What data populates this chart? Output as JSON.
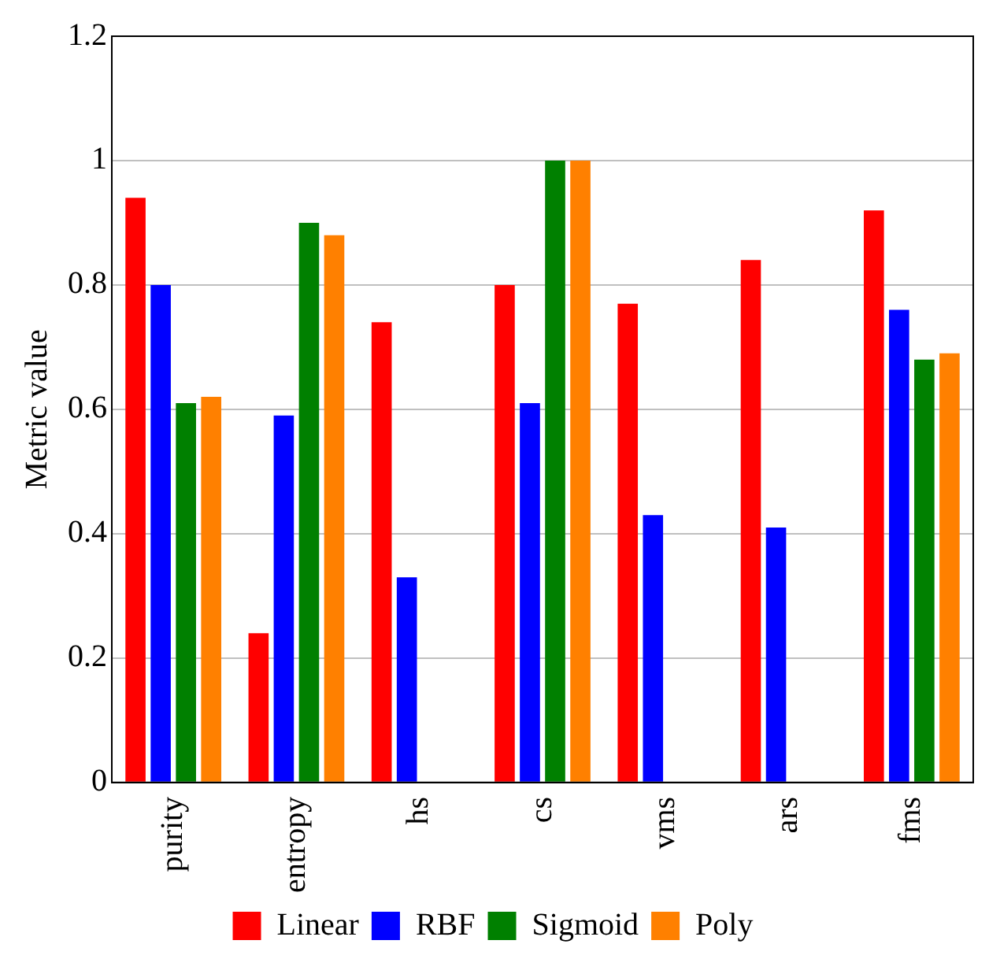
{
  "chart_data": {
    "type": "bar",
    "ylabel": "Metric value",
    "categories": [
      "purity",
      "entropy",
      "hs",
      "cs",
      "vms",
      "ars",
      "fms"
    ],
    "series": [
      {
        "name": "Linear",
        "color": "#ff0000",
        "values": [
          0.94,
          0.24,
          0.74,
          0.8,
          0.77,
          0.84,
          0.92
        ]
      },
      {
        "name": "RBF",
        "color": "#0000ff",
        "values": [
          0.8,
          0.59,
          0.33,
          0.61,
          0.43,
          0.41,
          0.76
        ]
      },
      {
        "name": "Sigmoid",
        "color": "#008000",
        "values": [
          0.61,
          0.9,
          0,
          1,
          0,
          0,
          0.68
        ]
      },
      {
        "name": "Poly",
        "color": "#ff8000",
        "values": [
          0.62,
          0.88,
          0,
          1,
          0,
          0,
          0.69
        ]
      }
    ],
    "ylim": [
      0,
      1.2
    ],
    "yticks": [
      0,
      0.2,
      0.4,
      0.6,
      0.8,
      1,
      1.2
    ],
    "grid": "y",
    "legend": "bottom"
  }
}
